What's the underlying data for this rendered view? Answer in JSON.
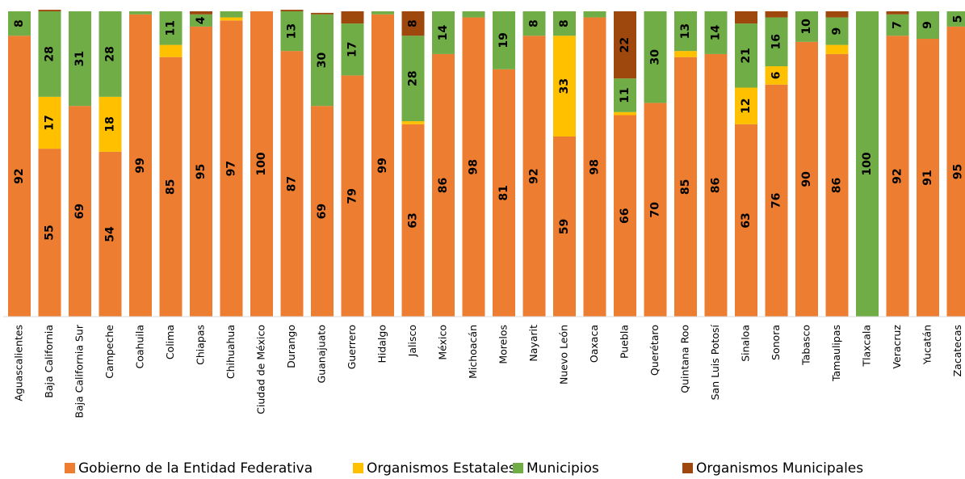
{
  "chart_data": {
    "type": "stacked_bar",
    "categories": [
      "Aguascalientes",
      "Baja California",
      "Baja California Sur",
      "Campeche",
      "Coahuila",
      "Colima",
      "Chiapas",
      "Chihuahua",
      "Ciudad de México",
      "Durango",
      "Guanajuato",
      "Guerrero",
      "Hidalgo",
      "Jalisco",
      "México",
      "Michoacán",
      "Morelos",
      "Nayarit",
      "Nuevo León",
      "Oaxaca",
      "Puebla",
      "Querétaro",
      "Quintana Roo",
      "San Luis Potosí",
      "Sinaloa",
      "Sonora",
      "Tabasco",
      "Tamaulipas",
      "Tlaxcala",
      "Veracruz",
      "Yucatán",
      "Zacatecas"
    ],
    "series": [
      {
        "name": "Gobierno de la Entidad Federativa",
        "color": "#ED7D31",
        "values": [
          92,
          55,
          69,
          54,
          99,
          85,
          95,
          97,
          100,
          87,
          69,
          79,
          99,
          63,
          86,
          98,
          81,
          92,
          59,
          98,
          66,
          70,
          85,
          86,
          63,
          76,
          90,
          86,
          0,
          92,
          91,
          95
        ],
        "value_labels": [
          92,
          55,
          69,
          54,
          99,
          85,
          95,
          97,
          100,
          87,
          69,
          79,
          99,
          63,
          86,
          98,
          81,
          92,
          59,
          98,
          66,
          70,
          85,
          86,
          63,
          76,
          90,
          86,
          null,
          92,
          91,
          95
        ]
      },
      {
        "name": "Organismos Estatales",
        "color": "#FFC000",
        "values": [
          0,
          17,
          0,
          18,
          0,
          4,
          0,
          1,
          0,
          0,
          0,
          0,
          0,
          1,
          0,
          0,
          0,
          0,
          33,
          0,
          1,
          0,
          2,
          0,
          12,
          6,
          0,
          3,
          0,
          0,
          0,
          0
        ],
        "value_labels": [
          null,
          17,
          null,
          18,
          null,
          null,
          null,
          null,
          null,
          null,
          null,
          null,
          null,
          null,
          null,
          null,
          null,
          null,
          33,
          null,
          null,
          null,
          null,
          null,
          12,
          6,
          null,
          null,
          null,
          null,
          null,
          null
        ]
      },
      {
        "name": "Municipios",
        "color": "#70AD47",
        "values": [
          8,
          28,
          31,
          28,
          1,
          11,
          4,
          2,
          0,
          13,
          30,
          17,
          1,
          28,
          14,
          2,
          19,
          8,
          8,
          2,
          11,
          30,
          13,
          14,
          21,
          16,
          10,
          9,
          100,
          7,
          9,
          5
        ],
        "value_labels": [
          8,
          28,
          31,
          28,
          null,
          11,
          4,
          null,
          null,
          13,
          30,
          17,
          null,
          28,
          14,
          null,
          19,
          8,
          8,
          null,
          11,
          30,
          13,
          14,
          21,
          16,
          10,
          9,
          100,
          7,
          9,
          5
        ]
      },
      {
        "name": "Organismos Municipales",
        "color": "#9E480E",
        "values": [
          0,
          0.5,
          0,
          0,
          0,
          0,
          1,
          0,
          0,
          0.5,
          0.5,
          4,
          0,
          8,
          0,
          0,
          0,
          0,
          0,
          0,
          22,
          0,
          0,
          0,
          4,
          2,
          0,
          2,
          0,
          1,
          0,
          0
        ],
        "value_labels": [
          null,
          null,
          null,
          null,
          null,
          null,
          null,
          null,
          null,
          null,
          null,
          null,
          null,
          8,
          null,
          null,
          null,
          null,
          null,
          null,
          22,
          null,
          null,
          null,
          null,
          null,
          null,
          null,
          null,
          null,
          null,
          null
        ]
      }
    ],
    "ylim": [
      0,
      100
    ],
    "legend": "bottom"
  }
}
